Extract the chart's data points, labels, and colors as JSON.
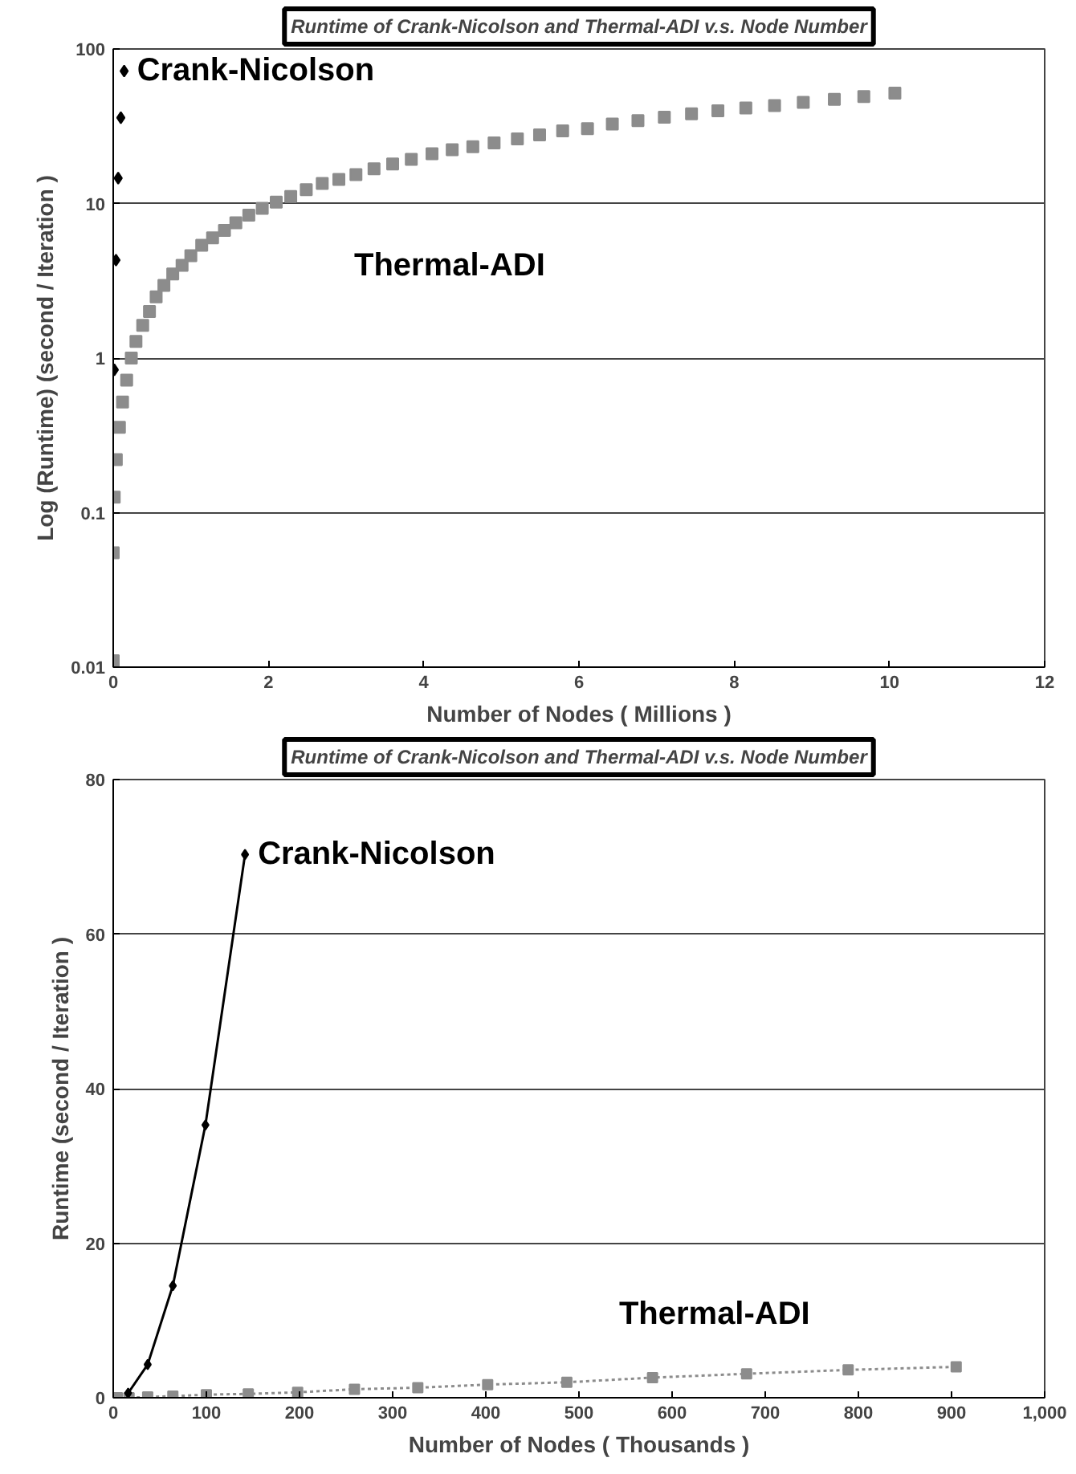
{
  "chart_data": [
    {
      "type": "scatter",
      "title": "Runtime of Crank-Nicolson and Thermal-ADI v.s. Node Number",
      "xlabel": "Number of Nodes ( Millions )",
      "ylabel": "Log (Runtime) (second / Iteration )",
      "log": "y",
      "grid": "y",
      "xlim": [
        0,
        12
      ],
      "xticks": [
        0,
        2,
        4,
        6,
        8,
        10,
        12
      ],
      "ylim": [
        0.01,
        100
      ],
      "yticks": [
        0.01,
        0.1,
        1,
        10,
        100
      ],
      "series": [
        {
          "name": "Crank-Nicolson",
          "color": "#000000",
          "marker": "diamond",
          "x": [
            0.014,
            0.036,
            0.064,
            0.098,
            0.141
          ],
          "values": [
            0.84,
            4.3,
            14.6,
            35.9,
            72
          ]
        },
        {
          "name": "Thermal-ADI",
          "color": "#8c8c8c",
          "marker": "square",
          "x": [
            0,
            0,
            0.013,
            0.04,
            0.08,
            0.12,
            0.173,
            0.233,
            0.293,
            0.38,
            0.467,
            0.553,
            0.653,
            0.767,
            0.887,
            1.0,
            1.14,
            1.28,
            1.433,
            1.58,
            1.747,
            1.92,
            2.1,
            2.287,
            2.487,
            2.693,
            2.907,
            3.127,
            3.36,
            3.6,
            3.84,
            4.107,
            4.367,
            4.633,
            4.907,
            5.207,
            5.493,
            5.79,
            6.11,
            6.43,
            6.76,
            7.1,
            7.45,
            7.79,
            8.15,
            8.52,
            8.89,
            9.29,
            9.67,
            10.07
          ],
          "values": [
            0.011,
            0.055,
            0.126,
            0.22,
            0.356,
            0.52,
            0.72,
            1.0,
            1.28,
            1.63,
            2.0,
            2.49,
            2.95,
            3.5,
            3.98,
            4.6,
            5.37,
            6.0,
            6.7,
            7.5,
            8.4,
            9.3,
            10.2,
            11.1,
            12.3,
            13.5,
            14.3,
            15.4,
            16.8,
            18.0,
            19.3,
            21.0,
            22.3,
            23.3,
            24.7,
            26.2,
            27.8,
            29.5,
            30.5,
            32.7,
            34.4,
            36.2,
            38.1,
            39.8,
            41.5,
            43,
            45.2,
            47.2,
            49.2,
            51.8
          ]
        }
      ]
    },
    {
      "type": "line",
      "title": "Runtime of Crank-Nicolson and Thermal-ADI v.s. Node Number",
      "xlabel": "Number of Nodes ( Thousands )",
      "ylabel": "Runtime (second / Iteration )",
      "grid": "y",
      "xlim": [
        0,
        1000
      ],
      "xticks": [
        0,
        100,
        200,
        300,
        400,
        500,
        600,
        700,
        800,
        900,
        {
          "value": 1000,
          "label": "1,000"
        }
      ],
      "ylim": [
        0,
        80
      ],
      "yticks": [
        0,
        20,
        40,
        60,
        80
      ],
      "series": [
        {
          "name": "Crank-Nicolson",
          "color": "#000000",
          "marker": "diamond",
          "line_style": "solid",
          "x": [
            16,
            37,
            64,
            99,
            141.5
          ],
          "values": [
            0.6,
            4.3,
            14.5,
            35.3,
            70.3
          ]
        },
        {
          "name": "Thermal-ADI",
          "color": "#8c8c8c",
          "marker": "square",
          "line_style": "dotted",
          "x": [
            4.5,
            17,
            37,
            64,
            100,
            145,
            198,
            259,
            327,
            402,
            487,
            579,
            680,
            789,
            905
          ],
          "values": [
            0,
            0,
            0.1,
            0.2,
            0.4,
            0.5,
            0.7,
            1.1,
            1.3,
            1.7,
            2.0,
            2.6,
            3.1,
            3.6,
            4.0
          ]
        }
      ]
    }
  ]
}
